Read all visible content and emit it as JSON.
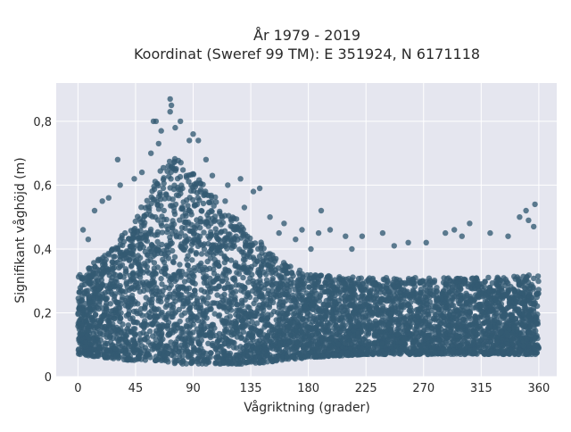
{
  "title_line1": "År 1979 - 2019",
  "title_line2": "Koordinat (Sweref 99 TM): E 351924, N 6171118",
  "colors": {
    "background": "#e5e6ef",
    "grid": "#ffffff",
    "marker": "#335a72"
  },
  "chart_data": {
    "type": "scatter",
    "title": "År 1979 - 2019 / Koordinat (Sweref 99 TM): E 351924, N 6171118",
    "xlabel": "Vågriktning (grader)",
    "ylabel": "Signifikant våghöjd (m)",
    "xlim": [
      -17,
      374
    ],
    "ylim": [
      0,
      0.92
    ],
    "xticks": [
      0,
      45,
      90,
      135,
      180,
      225,
      270,
      315,
      360
    ],
    "yticks": [
      0,
      0.2,
      0.4,
      0.6,
      0.8
    ],
    "xtick_labels": [
      "0",
      "45",
      "90",
      "135",
      "180",
      "225",
      "270",
      "315",
      "360"
    ],
    "ytick_labels": [
      "0",
      "0,2",
      "0,4",
      "0,6",
      "0,8"
    ],
    "grid": true,
    "legend": "none",
    "series": [
      {
        "envelope": [
          {
            "x": 0,
            "ymin": 0.07,
            "ymax": 0.32
          },
          {
            "x": 20,
            "ymin": 0.06,
            "ymax": 0.38
          },
          {
            "x": 45,
            "ymin": 0.05,
            "ymax": 0.5
          },
          {
            "x": 65,
            "ymin": 0.05,
            "ymax": 0.65
          },
          {
            "x": 75,
            "ymin": 0.04,
            "ymax": 0.7
          },
          {
            "x": 90,
            "ymin": 0.04,
            "ymax": 0.64
          },
          {
            "x": 110,
            "ymin": 0.04,
            "ymax": 0.55
          },
          {
            "x": 135,
            "ymin": 0.04,
            "ymax": 0.45
          },
          {
            "x": 160,
            "ymin": 0.05,
            "ymax": 0.36
          },
          {
            "x": 180,
            "ymin": 0.06,
            "ymax": 0.32
          },
          {
            "x": 225,
            "ymin": 0.07,
            "ymax": 0.31
          },
          {
            "x": 270,
            "ymin": 0.07,
            "ymax": 0.31
          },
          {
            "x": 315,
            "ymin": 0.07,
            "ymax": 0.31
          },
          {
            "x": 360,
            "ymin": 0.07,
            "ymax": 0.32
          }
        ],
        "outliers": [
          {
            "x": 72,
            "y": 0.87
          },
          {
            "x": 73,
            "y": 0.85
          },
          {
            "x": 72,
            "y": 0.83
          },
          {
            "x": 59,
            "y": 0.8
          },
          {
            "x": 61,
            "y": 0.8
          },
          {
            "x": 80,
            "y": 0.8
          },
          {
            "x": 76,
            "y": 0.78
          },
          {
            "x": 65,
            "y": 0.77
          },
          {
            "x": 90,
            "y": 0.76
          },
          {
            "x": 63,
            "y": 0.73
          },
          {
            "x": 87,
            "y": 0.74
          },
          {
            "x": 94,
            "y": 0.74
          },
          {
            "x": 31,
            "y": 0.68
          },
          {
            "x": 57,
            "y": 0.7
          },
          {
            "x": 100,
            "y": 0.68
          },
          {
            "x": 44,
            "y": 0.62
          },
          {
            "x": 50,
            "y": 0.64
          },
          {
            "x": 105,
            "y": 0.63
          },
          {
            "x": 24,
            "y": 0.56
          },
          {
            "x": 33,
            "y": 0.6
          },
          {
            "x": 117,
            "y": 0.6
          },
          {
            "x": 127,
            "y": 0.62
          },
          {
            "x": 137,
            "y": 0.58
          },
          {
            "x": 142,
            "y": 0.59
          },
          {
            "x": 13,
            "y": 0.52
          },
          {
            "x": 19,
            "y": 0.55
          },
          {
            "x": 115,
            "y": 0.55
          },
          {
            "x": 130,
            "y": 0.53
          },
          {
            "x": 150,
            "y": 0.5
          },
          {
            "x": 161,
            "y": 0.48
          },
          {
            "x": 4,
            "y": 0.46
          },
          {
            "x": 8,
            "y": 0.43
          },
          {
            "x": 157,
            "y": 0.45
          },
          {
            "x": 170,
            "y": 0.43
          },
          {
            "x": 175,
            "y": 0.46
          },
          {
            "x": 188,
            "y": 0.45
          },
          {
            "x": 190,
            "y": 0.52
          },
          {
            "x": 197,
            "y": 0.46
          },
          {
            "x": 209,
            "y": 0.44
          },
          {
            "x": 222,
            "y": 0.44
          },
          {
            "x": 238,
            "y": 0.45
          },
          {
            "x": 272,
            "y": 0.42
          },
          {
            "x": 287,
            "y": 0.45
          },
          {
            "x": 294,
            "y": 0.46
          },
          {
            "x": 300,
            "y": 0.44
          },
          {
            "x": 306,
            "y": 0.48
          },
          {
            "x": 322,
            "y": 0.45
          },
          {
            "x": 336,
            "y": 0.44
          },
          {
            "x": 350,
            "y": 0.52
          },
          {
            "x": 352,
            "y": 0.49
          },
          {
            "x": 356,
            "y": 0.47
          },
          {
            "x": 357,
            "y": 0.54
          },
          {
            "x": 345,
            "y": 0.5
          },
          {
            "x": 258,
            "y": 0.42
          },
          {
            "x": 247,
            "y": 0.41
          },
          {
            "x": 214,
            "y": 0.4
          },
          {
            "x": 182,
            "y": 0.4
          }
        ]
      }
    ]
  }
}
